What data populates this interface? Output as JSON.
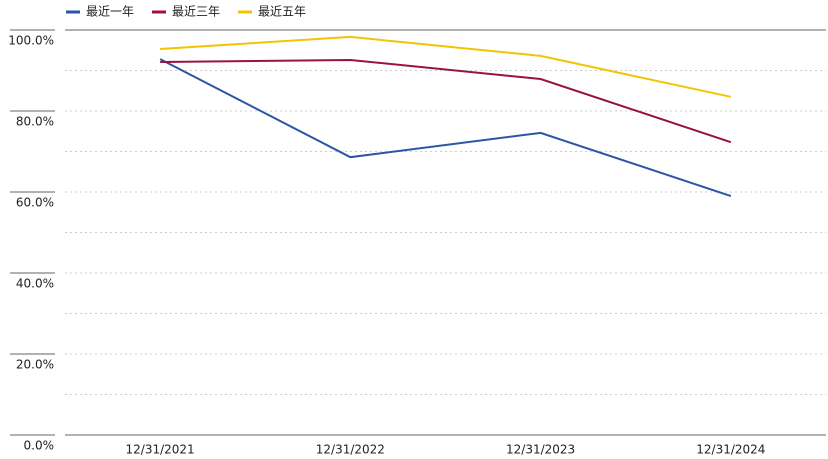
{
  "chart_data": {
    "type": "line",
    "categories": [
      "12/31/2021",
      "12/31/2022",
      "12/31/2023",
      "12/31/2024"
    ],
    "series": [
      {
        "name": "最近一年",
        "color": "#2a56a4",
        "values": [
          92.8,
          68.6,
          74.6,
          59.0
        ]
      },
      {
        "name": "最近三年",
        "color": "#9b1045",
        "values": [
          92.1,
          92.6,
          87.9,
          72.3
        ]
      },
      {
        "name": "最近五年",
        "color": "#f2c500",
        "values": [
          95.3,
          98.3,
          93.6,
          83.5
        ]
      }
    ],
    "ylim": [
      0,
      100
    ],
    "yticks": [
      {
        "value": 0,
        "label": "0.0%"
      },
      {
        "value": 20,
        "label": "20.0%"
      },
      {
        "value": 40,
        "label": "40.0%"
      },
      {
        "value": 60,
        "label": "60.0%"
      },
      {
        "value": 80,
        "label": "80.0%"
      },
      {
        "value": 100,
        "label": "100.0%"
      }
    ],
    "y_minor_ticks": [
      10,
      30,
      50,
      70,
      90
    ],
    "grid": true,
    "legend": "top-left"
  }
}
